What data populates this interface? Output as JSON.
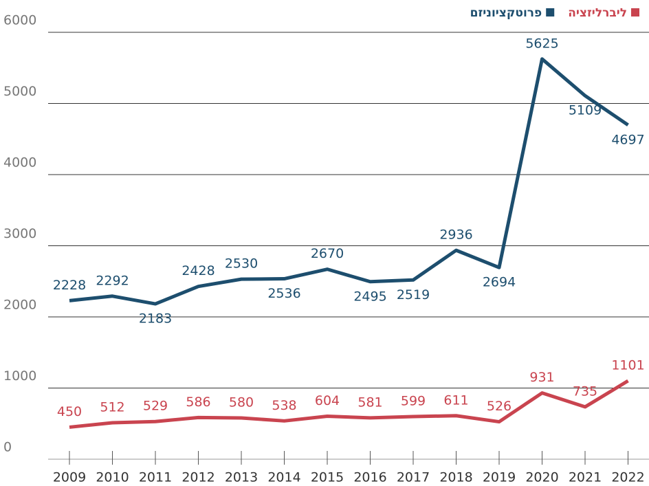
{
  "chart_data": {
    "type": "line",
    "categories": [
      "2009",
      "2010",
      "2011",
      "2012",
      "2013",
      "2014",
      "2015",
      "2016",
      "2017",
      "2018",
      "2019",
      "2020",
      "2021",
      "2022"
    ],
    "series": [
      {
        "name": "פרוטקציוניזם",
        "color": "#1d4e6e",
        "values": [
          2228,
          2292,
          2183,
          2428,
          2530,
          2536,
          2670,
          2495,
          2519,
          2936,
          2694,
          5625,
          5109,
          4697
        ]
      },
      {
        "name": "ליברליזציה",
        "color": "#c9444f",
        "values": [
          450,
          512,
          529,
          586,
          580,
          538,
          604,
          581,
          599,
          611,
          526,
          931,
          735,
          1101
        ]
      }
    ],
    "ylim": [
      0,
      6000
    ],
    "yticks": [
      0,
      1000,
      2000,
      3000,
      4000,
      5000,
      6000
    ],
    "grid": true,
    "legend": "top-right"
  }
}
